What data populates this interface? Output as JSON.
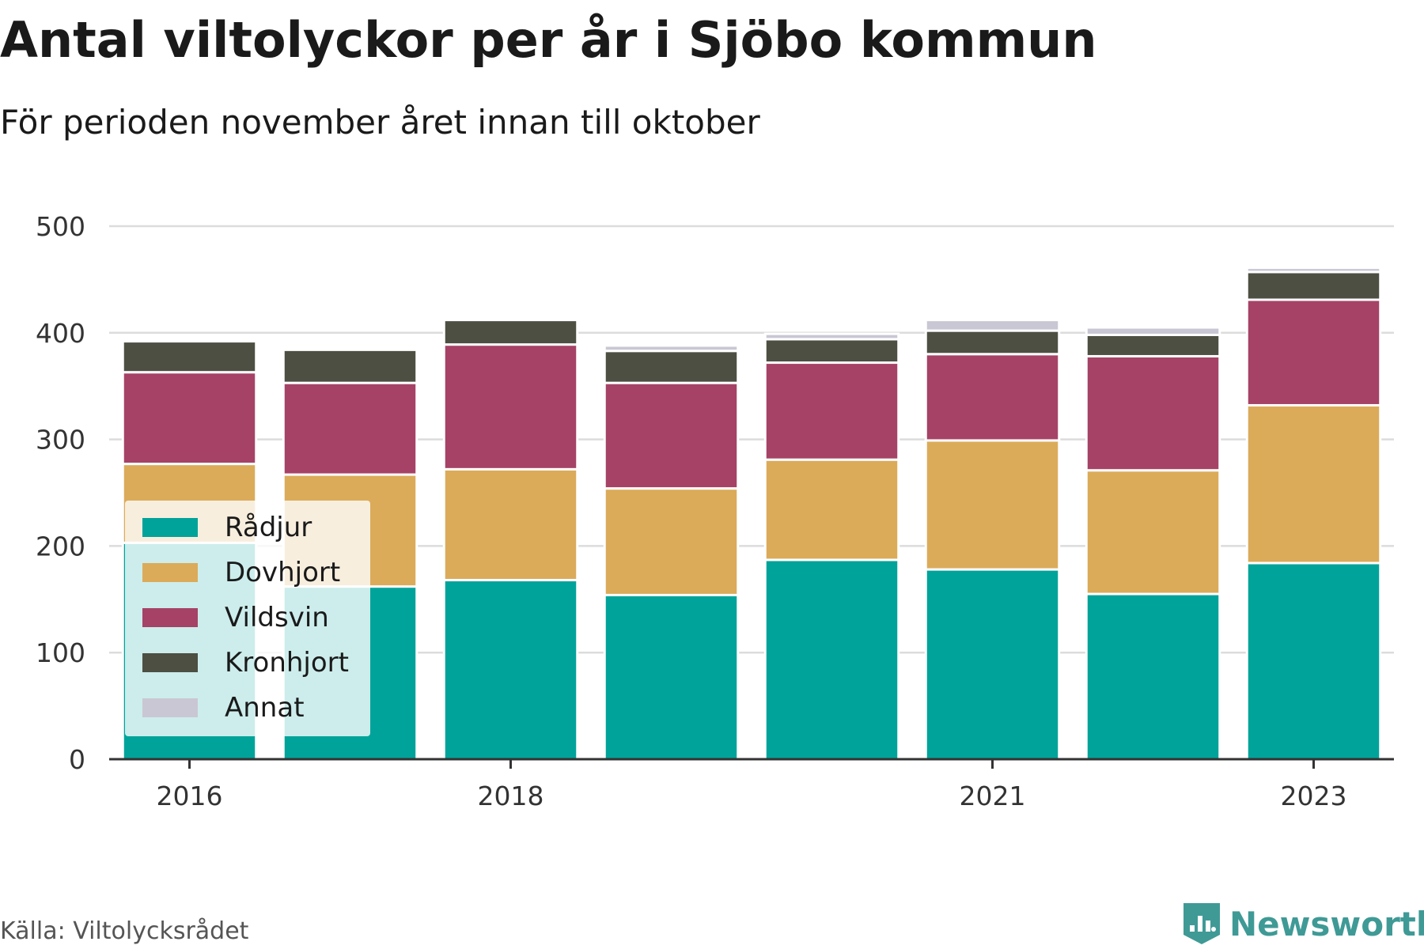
{
  "header": {
    "title": "Antal viltolyckor per år i Sjöbo kommun",
    "subtitle": "För perioden november året innan till oktober"
  },
  "footer": {
    "source": "Källa: Viltolycksrådet",
    "brand": "Newsworthy",
    "brand_color": "#3f9a96"
  },
  "chart_data": {
    "type": "bar",
    "stacked": true,
    "x": [
      2016,
      2017,
      2018,
      2019,
      2020,
      2021,
      2022,
      2023
    ],
    "x_ticks": [
      "2016",
      "2018",
      "2021",
      "2023"
    ],
    "ylim": [
      0,
      500
    ],
    "y_ticks": [
      0,
      100,
      200,
      300,
      400,
      500
    ],
    "grid": true,
    "legend_position": "lower-left",
    "series": [
      {
        "name": "Rådjur",
        "color": "#00a39a",
        "values": [
          203,
          162,
          168,
          154,
          187,
          178,
          155,
          184
        ]
      },
      {
        "name": "Dovhjort",
        "color": "#dbab5a",
        "values": [
          74,
          105,
          104,
          100,
          94,
          121,
          116,
          148
        ]
      },
      {
        "name": "Vildsvin",
        "color": "#a64266",
        "values": [
          86,
          86,
          117,
          99,
          91,
          81,
          107,
          99
        ]
      },
      {
        "name": "Kronhjort",
        "color": "#4d4f42",
        "values": [
          29,
          31,
          23,
          30,
          22,
          22,
          20,
          26
        ]
      },
      {
        "name": "Annat",
        "color": "#c9c7d3",
        "values": [
          0,
          0,
          0,
          5,
          5,
          10,
          7,
          4
        ]
      }
    ]
  }
}
